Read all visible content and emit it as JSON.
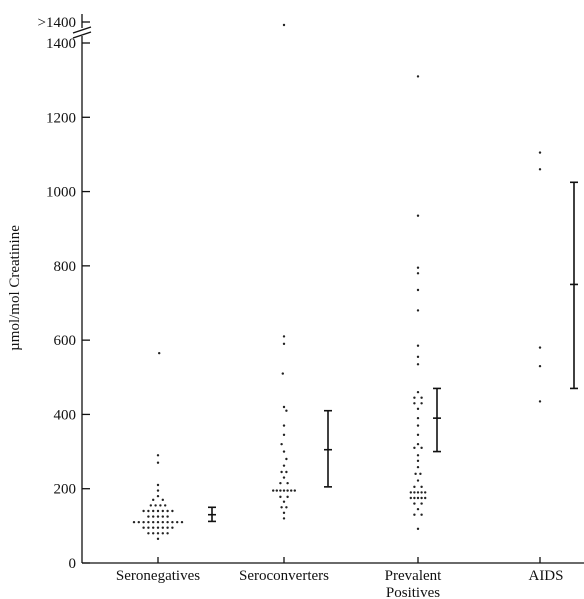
{
  "chart_data": {
    "type": "scatter",
    "title": "",
    "ylabel": "µmol/mol Creatinine",
    "xlabel": "",
    "ylim": [
      0,
      1400
    ],
    "y_break": {
      "label": ">1400",
      "tick": 1400
    },
    "yticks": [
      0,
      200,
      400,
      600,
      800,
      1000,
      1200,
      1400
    ],
    "categories": [
      {
        "label": "Seronegatives",
        "label2": ""
      },
      {
        "label": "Seroconverters",
        "label2": ""
      },
      {
        "label": "Prevalent",
        "label2": "Positives"
      },
      {
        "label": "AIDS",
        "label2": ""
      }
    ],
    "groups": [
      {
        "name": "Seronegatives",
        "points": [
          [
            0.01,
            565
          ],
          [
            0.0,
            290
          ],
          [
            0.0,
            270
          ],
          [
            0.0,
            210
          ],
          [
            0.0,
            195
          ],
          [
            0.0,
            180
          ],
          [
            -0.04,
            170
          ],
          [
            0.04,
            170
          ],
          [
            -0.06,
            155
          ],
          [
            -0.02,
            155
          ],
          [
            0.02,
            155
          ],
          [
            0.06,
            155
          ],
          [
            -0.12,
            140
          ],
          [
            -0.08,
            140
          ],
          [
            -0.04,
            140
          ],
          [
            0.0,
            140
          ],
          [
            0.04,
            140
          ],
          [
            0.08,
            140
          ],
          [
            0.12,
            140
          ],
          [
            -0.08,
            125
          ],
          [
            -0.04,
            125
          ],
          [
            0.0,
            125
          ],
          [
            0.04,
            125
          ],
          [
            0.08,
            125
          ],
          [
            -0.2,
            110
          ],
          [
            -0.16,
            110
          ],
          [
            -0.12,
            110
          ],
          [
            -0.08,
            110
          ],
          [
            -0.04,
            110
          ],
          [
            0.0,
            110
          ],
          [
            0.04,
            110
          ],
          [
            0.08,
            110
          ],
          [
            0.12,
            110
          ],
          [
            0.16,
            110
          ],
          [
            0.2,
            110
          ],
          [
            -0.12,
            95
          ],
          [
            -0.08,
            95
          ],
          [
            -0.04,
            95
          ],
          [
            0.0,
            95
          ],
          [
            0.04,
            95
          ],
          [
            0.08,
            95
          ],
          [
            0.12,
            95
          ],
          [
            -0.08,
            80
          ],
          [
            -0.04,
            80
          ],
          [
            0.0,
            80
          ],
          [
            0.04,
            80
          ],
          [
            0.08,
            80
          ],
          [
            0.0,
            65
          ]
        ],
        "error_bar": {
          "mean": 130,
          "low": 112,
          "high": 150
        }
      },
      {
        "name": "Seroconverters",
        "points": [
          [
            0.0,
            1470
          ],
          [
            0.0,
            610
          ],
          [
            0.0,
            590
          ],
          [
            -0.01,
            510
          ],
          [
            0.0,
            420
          ],
          [
            0.02,
            410
          ],
          [
            0.0,
            370
          ],
          [
            0.0,
            345
          ],
          [
            -0.02,
            320
          ],
          [
            0.0,
            300
          ],
          [
            0.02,
            280
          ],
          [
            0.0,
            262
          ],
          [
            -0.02,
            245
          ],
          [
            0.02,
            245
          ],
          [
            0.0,
            230
          ],
          [
            -0.03,
            215
          ],
          [
            0.03,
            215
          ],
          [
            -0.09,
            195
          ],
          [
            -0.06,
            195
          ],
          [
            -0.03,
            195
          ],
          [
            0.0,
            195
          ],
          [
            0.03,
            195
          ],
          [
            0.06,
            195
          ],
          [
            0.09,
            195
          ],
          [
            -0.03,
            178
          ],
          [
            0.03,
            178
          ],
          [
            0.0,
            165
          ],
          [
            -0.02,
            150
          ],
          [
            0.02,
            150
          ],
          [
            0.0,
            135
          ],
          [
            0.0,
            120
          ]
        ],
        "error_bar": {
          "mean": 305,
          "low": 205,
          "high": 410
        }
      },
      {
        "name": "Prevalent Positives",
        "points": [
          [
            0.0,
            1310
          ],
          [
            0.0,
            935
          ],
          [
            0.0,
            795
          ],
          [
            0.0,
            780
          ],
          [
            0.0,
            735
          ],
          [
            0.0,
            680
          ],
          [
            0.0,
            585
          ],
          [
            0.0,
            555
          ],
          [
            0.0,
            535
          ],
          [
            0.0,
            460
          ],
          [
            -0.03,
            445
          ],
          [
            0.03,
            445
          ],
          [
            -0.03,
            430
          ],
          [
            0.03,
            430
          ],
          [
            0.0,
            415
          ],
          [
            0.0,
            390
          ],
          [
            0.0,
            370
          ],
          [
            0.0,
            345
          ],
          [
            0.0,
            320
          ],
          [
            -0.03,
            310
          ],
          [
            0.03,
            310
          ],
          [
            0.0,
            290
          ],
          [
            0.0,
            275
          ],
          [
            0.0,
            258
          ],
          [
            -0.02,
            240
          ],
          [
            0.02,
            240
          ],
          [
            0.0,
            222
          ],
          [
            -0.03,
            205
          ],
          [
            0.03,
            205
          ],
          [
            -0.06,
            190
          ],
          [
            -0.03,
            190
          ],
          [
            0.0,
            190
          ],
          [
            0.03,
            190
          ],
          [
            0.06,
            190
          ],
          [
            -0.06,
            175
          ],
          [
            -0.03,
            175
          ],
          [
            0.0,
            175
          ],
          [
            0.03,
            175
          ],
          [
            0.06,
            175
          ],
          [
            -0.03,
            160
          ],
          [
            0.03,
            160
          ],
          [
            0.0,
            145
          ],
          [
            -0.03,
            130
          ],
          [
            0.03,
            130
          ],
          [
            0.0,
            92
          ]
        ],
        "error_bar": {
          "mean": 390,
          "low": 300,
          "high": 470
        }
      },
      {
        "name": "AIDS",
        "points": [
          [
            0.0,
            1105
          ],
          [
            0.0,
            1060
          ],
          [
            0.0,
            580
          ],
          [
            0.0,
            530
          ],
          [
            0.0,
            435
          ]
        ],
        "error_bar": {
          "mean": 750,
          "low": 470,
          "high": 1025
        }
      }
    ],
    "grid": false,
    "legend": "none"
  }
}
